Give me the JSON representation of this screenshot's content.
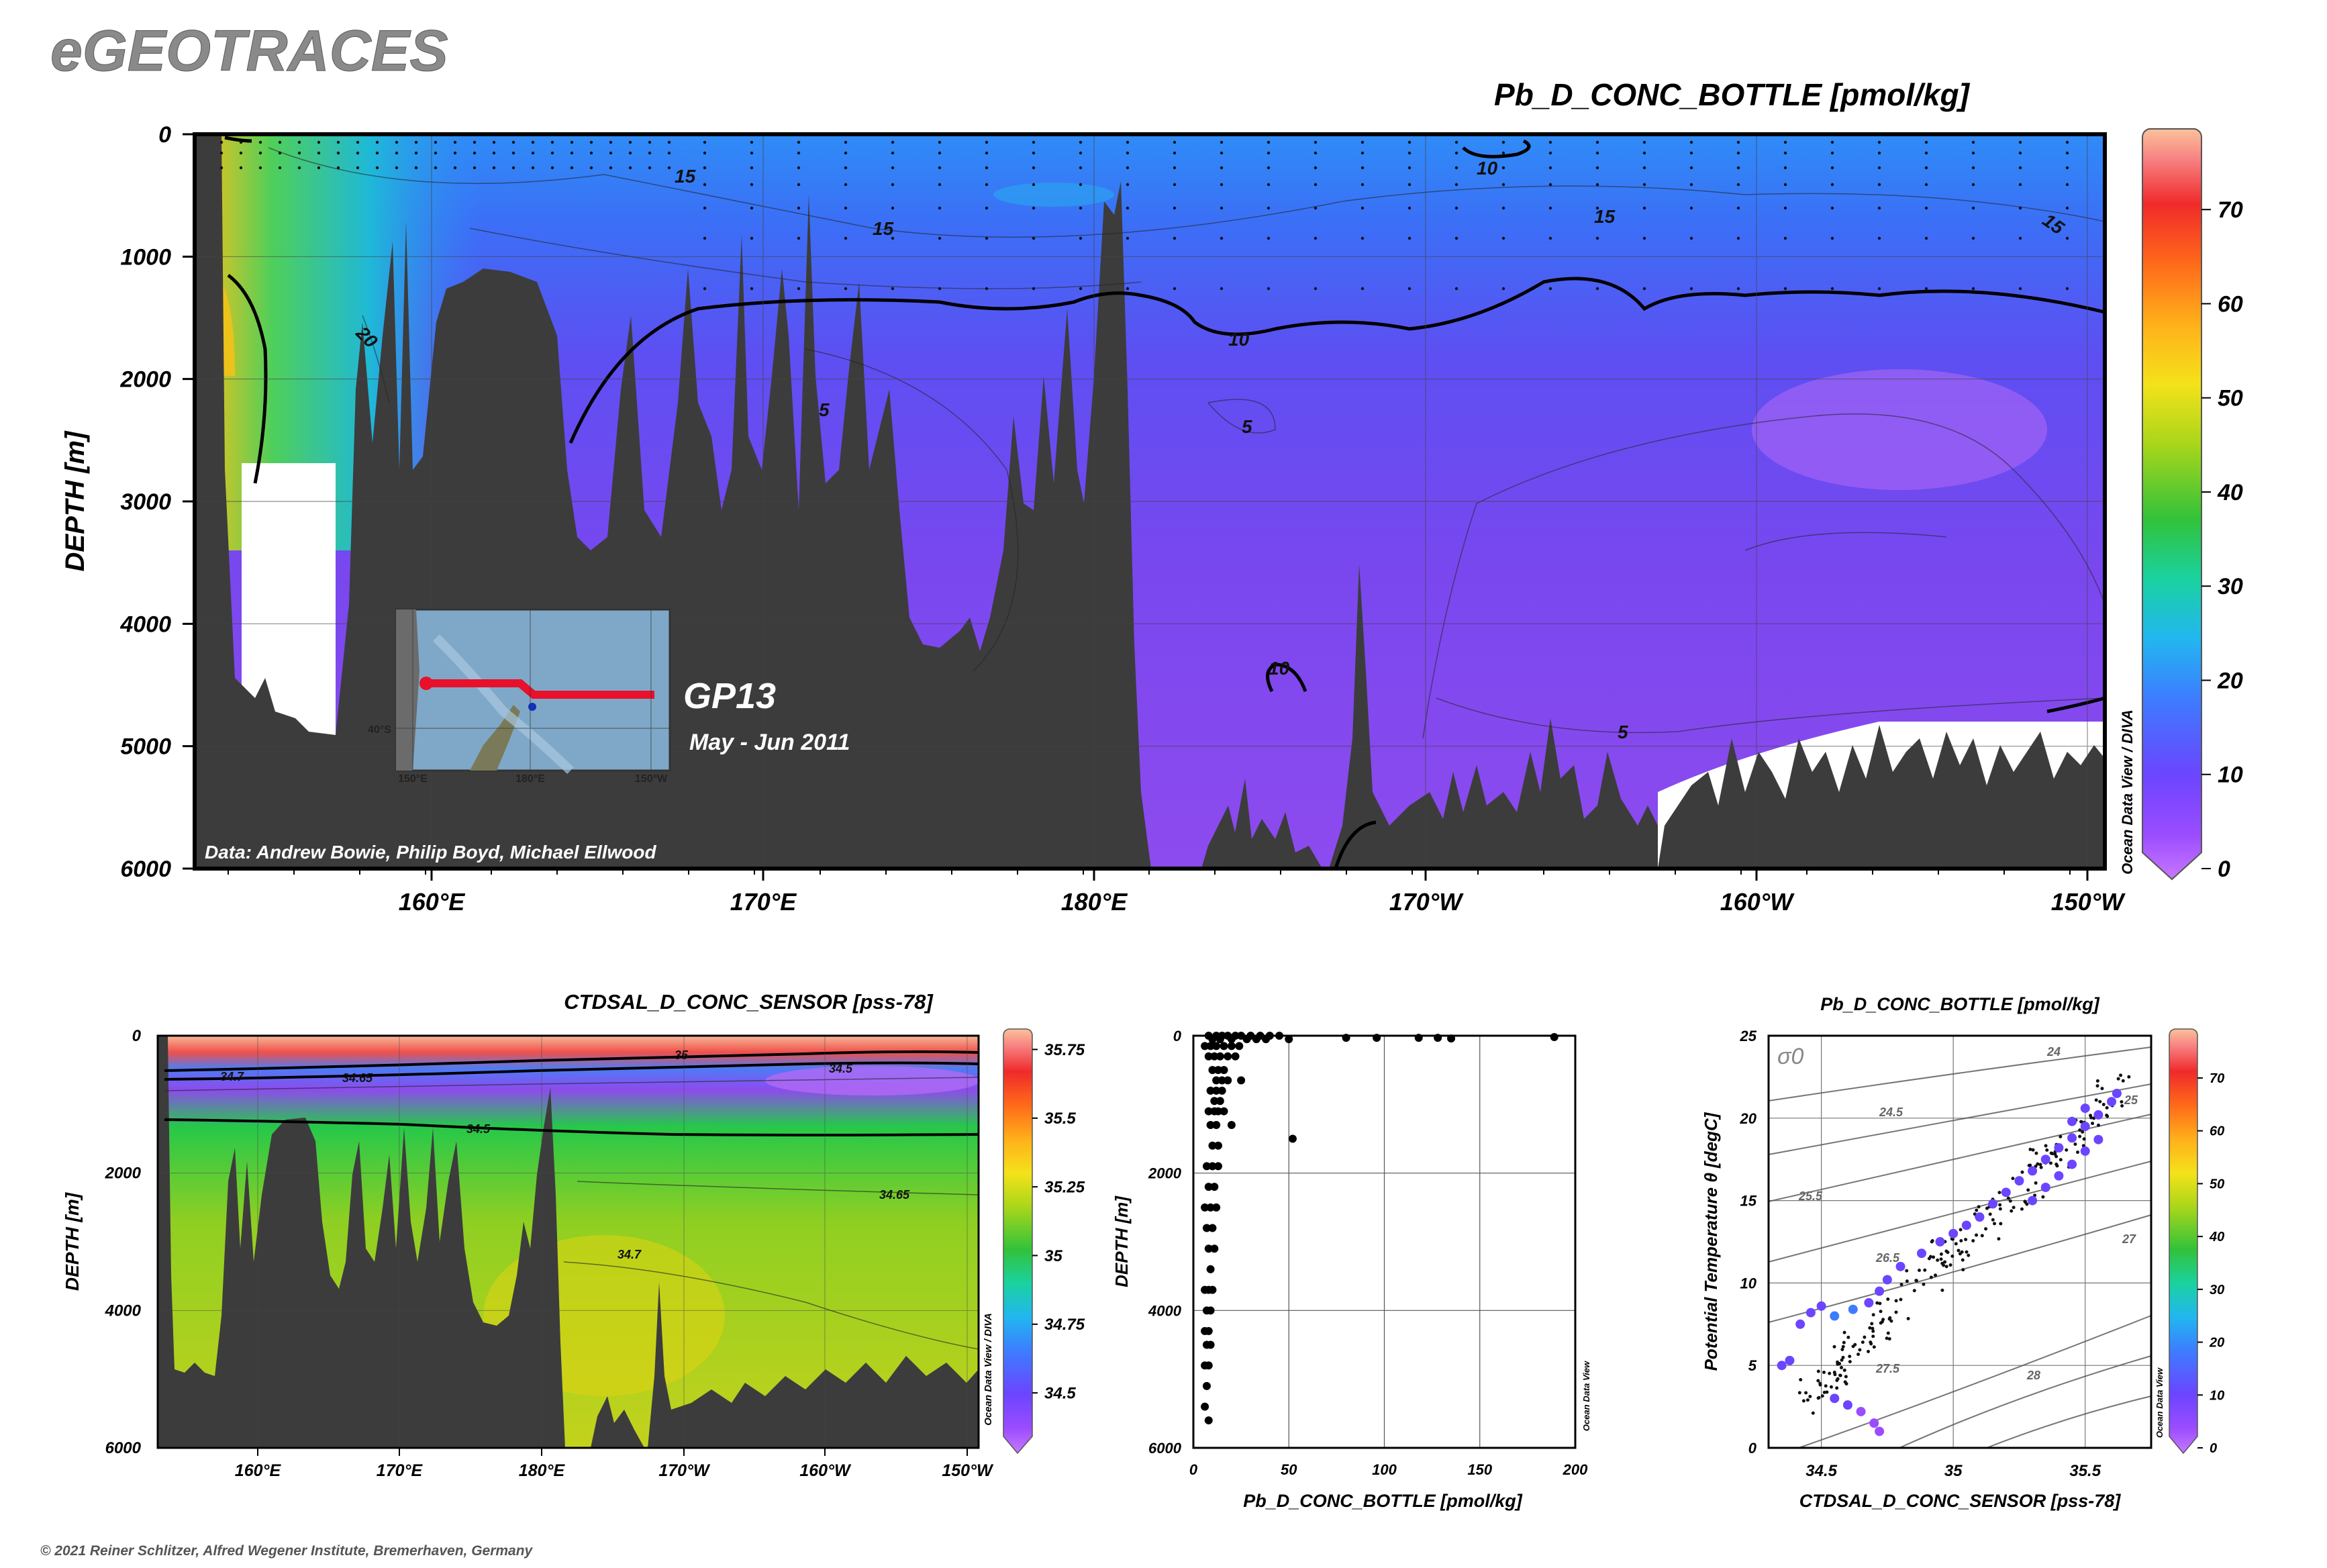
{
  "app_title": "eGEOTRACES",
  "copyright": "© 2021 Reiner Schlitzer, Alfred Wegener Institute, Bremerhaven, Germany",
  "inset": {
    "cruise": "GP13",
    "dates": "May - Jun 2011",
    "lat_label": "40°S",
    "lon_labels": [
      "150°E",
      "180°E",
      "150°W"
    ]
  },
  "chart_data": [
    {
      "type": "heatmap",
      "title": "Pb_D_CONC_BOTTLE [pmol/kg]",
      "ylabel": "DEPTH [m]",
      "credit": "Data: Andrew Bowie, Philip Boyd, Michael Ellwood",
      "software_credit": "Ocean Data View / DIVA",
      "y_ticks": [
        "0",
        "1000",
        "2000",
        "3000",
        "4000",
        "5000",
        "6000"
      ],
      "ylim": [
        6000,
        0
      ],
      "x_ticks": [
        "160°E",
        "170°E",
        "180°E",
        "170°W",
        "160°W",
        "150°W"
      ],
      "contour_labels": [
        "15",
        "15",
        "15",
        "15",
        "10",
        "10",
        "10",
        "20",
        "5",
        "5",
        "5"
      ],
      "colorbar": {
        "ticks": [
          "0",
          "10",
          "20",
          "30",
          "40",
          "50",
          "60",
          "70"
        ],
        "range": [
          0,
          78
        ]
      }
    },
    {
      "type": "heatmap",
      "title": "CTDSAL_D_CONC_SENSOR [pss-78]",
      "ylabel": "DEPTH [m]",
      "software_credit": "Ocean Data View / DIVA",
      "y_ticks": [
        "0",
        "2000",
        "4000",
        "6000"
      ],
      "ylim": [
        6000,
        0
      ],
      "x_ticks": [
        "160°E",
        "170°E",
        "180°E",
        "170°W",
        "160°W",
        "150°W"
      ],
      "contour_labels": [
        "34.7",
        "34.65",
        "35",
        "34.5",
        "34.5",
        "34.65",
        "34.7"
      ],
      "colorbar": {
        "ticks": [
          "35.75",
          "35.5",
          "35.25",
          "35",
          "34.75",
          "34.5"
        ],
        "range": [
          34.3,
          35.8
        ]
      }
    },
    {
      "type": "scatter",
      "xlabel": "Pb_D_CONC_BOTTLE [pmol/kg]",
      "ylabel": "DEPTH [m]",
      "software_credit": "Ocean Data View",
      "x_ticks": [
        "0",
        "50",
        "100",
        "150",
        "200"
      ],
      "y_ticks": [
        "0",
        "2000",
        "4000",
        "6000"
      ],
      "xlim": [
        0,
        200
      ],
      "ylim": [
        6000,
        0
      ],
      "x": [
        8,
        12,
        15,
        18,
        22,
        25,
        30,
        35,
        40,
        45,
        10,
        14,
        20,
        28,
        33,
        38,
        50,
        80,
        96,
        118,
        128,
        135,
        189,
        6,
        9,
        12,
        16,
        20,
        24,
        8,
        11,
        14,
        18,
        22,
        10,
        13,
        16,
        12,
        15,
        18,
        25,
        9,
        12,
        15,
        11,
        14,
        8,
        11,
        13,
        16,
        9,
        12,
        20,
        52,
        10,
        13,
        7,
        10,
        13,
        8,
        11,
        6,
        9,
        12,
        7,
        10,
        8,
        11,
        9,
        6,
        8,
        10,
        7,
        9,
        6,
        8,
        7,
        9,
        6,
        8,
        7,
        6,
        8
      ],
      "y": [
        0,
        0,
        0,
        0,
        0,
        0,
        0,
        0,
        0,
        0,
        50,
        50,
        50,
        50,
        50,
        50,
        50,
        30,
        30,
        30,
        30,
        40,
        20,
        150,
        150,
        150,
        150,
        150,
        150,
        300,
        300,
        300,
        300,
        300,
        500,
        500,
        500,
        650,
        650,
        650,
        650,
        800,
        800,
        800,
        950,
        950,
        1100,
        1100,
        1100,
        1100,
        1300,
        1300,
        1300,
        1500,
        1600,
        1600,
        1900,
        1900,
        1900,
        2200,
        2200,
        2500,
        2500,
        2500,
        2800,
        2800,
        3100,
        3100,
        3400,
        3700,
        3700,
        3700,
        4000,
        4000,
        4300,
        4300,
        4500,
        4500,
        4800,
        4800,
        5100,
        5400,
        5600
      ]
    },
    {
      "type": "scatter",
      "title": "Pb_D_CONC_BOTTLE [pmol/kg]",
      "xlabel": "CTDSAL_D_CONC_SENSOR [pss-78]",
      "ylabel": "Potential Temperature θ [degC]",
      "software_credit": "Ocean Data View",
      "isopycnal_symbol": "σ0",
      "x_ticks": [
        "34.5",
        "35",
        "35.5"
      ],
      "y_ticks": [
        "0",
        "5",
        "10",
        "15",
        "20",
        "25"
      ],
      "xlim": [
        34.3,
        35.75
      ],
      "ylim": [
        0,
        25
      ],
      "isopycnal_labels": [
        "24",
        "24.5",
        "25",
        "25.5",
        "26.5",
        "27",
        "27.5",
        "28"
      ],
      "colorbar": {
        "ticks": [
          "0",
          "10",
          "20",
          "30",
          "40",
          "50",
          "60",
          "70"
        ],
        "range": [
          0,
          78
        ]
      },
      "s": [
        34.35,
        34.38,
        34.42,
        34.46,
        34.5,
        34.55,
        34.6,
        34.65,
        34.7,
        34.72,
        34.55,
        34.62,
        34.68,
        34.72,
        34.75,
        34.8,
        34.88,
        34.95,
        35.0,
        35.05,
        35.1,
        35.15,
        35.2,
        35.25,
        35.3,
        35.35,
        35.4,
        35.45,
        35.5,
        35.55,
        35.6,
        35.62,
        35.3,
        35.35,
        35.4,
        35.45,
        35.5,
        35.55,
        35.45,
        35.5
      ],
      "theta": [
        5.0,
        5.3,
        7.5,
        8.2,
        8.6,
        3.0,
        2.6,
        2.2,
        1.5,
        1.0,
        8.0,
        8.4,
        8.8,
        9.5,
        10.2,
        11.0,
        11.8,
        12.5,
        13.0,
        13.5,
        14.0,
        14.8,
        15.5,
        16.2,
        16.8,
        17.5,
        18.2,
        18.8,
        19.5,
        20.2,
        21.0,
        21.5,
        15.0,
        15.8,
        16.5,
        17.2,
        18.0,
        18.7,
        19.8,
        20.6
      ],
      "pb": [
        12,
        12,
        14,
        14,
        13,
        11,
        10,
        9,
        8,
        6,
        15,
        15,
        14,
        14,
        14,
        13,
        13,
        13,
        12,
        12,
        12,
        12,
        11,
        11,
        11,
        11,
        11,
        11,
        10,
        10,
        10,
        10,
        12,
        12,
        12,
        11,
        11,
        11,
        11,
        10
      ]
    }
  ]
}
